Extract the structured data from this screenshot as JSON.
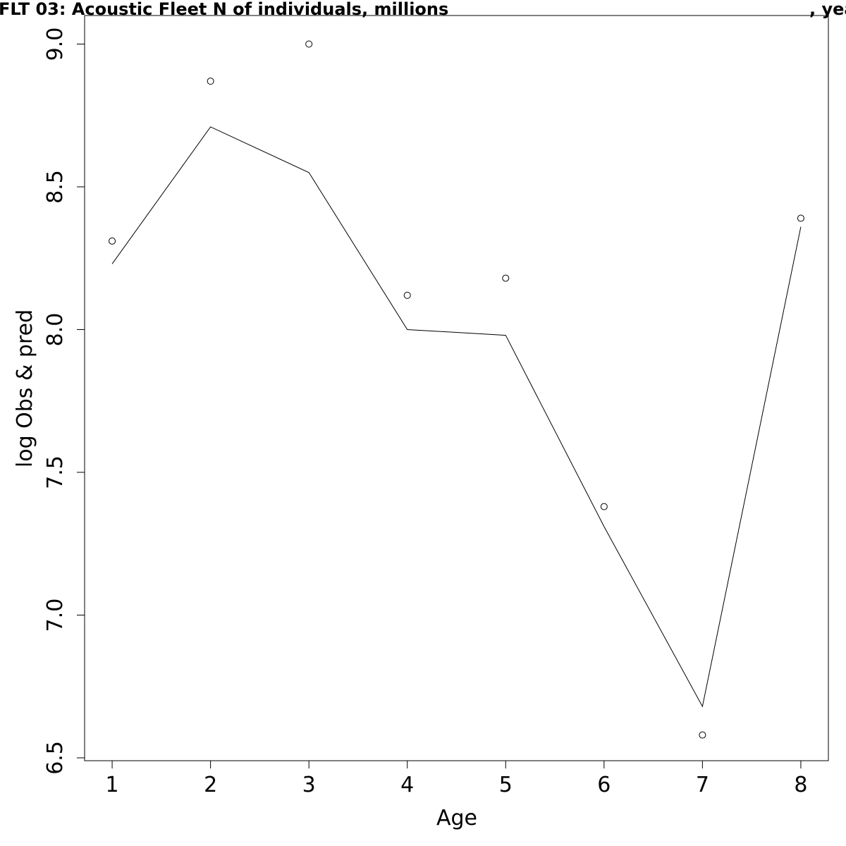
{
  "chart_data": {
    "type": "line",
    "title": "FLT 03: Acoustic Fleet   N of individuals, millions",
    "title_suffix": ", yea",
    "xlabel": "Age",
    "ylabel": "log Obs & pred",
    "xlim": [
      0.72,
      8.28
    ],
    "ylim": [
      6.49,
      9.1
    ],
    "x_ticks": [
      1,
      2,
      3,
      4,
      5,
      6,
      7,
      8
    ],
    "x_tick_labels": [
      "1",
      "2",
      "3",
      "4",
      "5",
      "6",
      "7",
      "8"
    ],
    "y_ticks": [
      6.5,
      7.0,
      7.5,
      8.0,
      8.5,
      9.0
    ],
    "y_tick_labels": [
      "6.5",
      "7.0",
      "7.5",
      "8.0",
      "8.5",
      "9.0"
    ],
    "grid": false,
    "legend": "none",
    "x": [
      1,
      2,
      3,
      4,
      5,
      6,
      7,
      8
    ],
    "series": [
      {
        "kind": "points",
        "marker": "open-circle",
        "values": [
          8.31,
          8.87,
          9.0,
          8.12,
          8.18,
          7.38,
          6.58,
          8.39
        ]
      },
      {
        "kind": "line",
        "values": [
          8.23,
          8.71,
          8.55,
          8.0,
          7.98,
          7.31,
          6.68,
          8.36
        ]
      }
    ],
    "colors": {
      "line": "#000000",
      "point_stroke": "#000000",
      "axis": "#000000",
      "frame": "#000000"
    }
  }
}
